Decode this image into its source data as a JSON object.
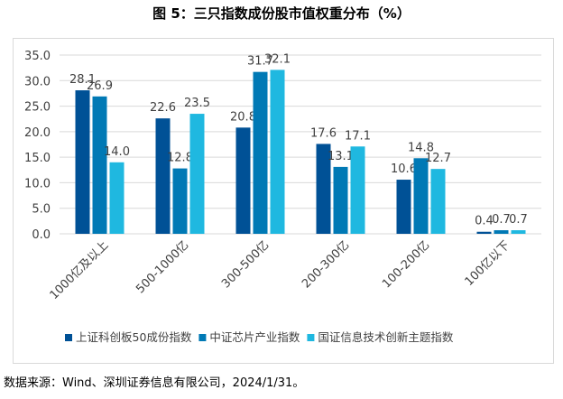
{
  "chart_data": {
    "type": "bar",
    "title": "图 5：三只指数成份股市值权重分布（%）",
    "categories": [
      "1000亿及以上",
      "500-1000亿",
      "300-500亿",
      "200-300亿",
      "100-200亿",
      "100亿以下"
    ],
    "series": [
      {
        "name": "上证科创板50成份指数",
        "color": "#005196",
        "values": [
          28.1,
          22.6,
          20.8,
          17.6,
          10.6,
          0.4
        ]
      },
      {
        "name": "中证芯片产业指数",
        "color": "#0079b5",
        "values": [
          26.9,
          12.8,
          31.7,
          13.1,
          14.8,
          0.7
        ]
      },
      {
        "name": "国证信息技术创新主题指数",
        "color": "#1fb8e0",
        "values": [
          14.0,
          23.5,
          32.1,
          17.1,
          12.7,
          0.7
        ]
      }
    ],
    "ylim": [
      0,
      35
    ],
    "yticks": [
      "0.0",
      "5.0",
      "10.0",
      "15.0",
      "20.0",
      "25.0",
      "30.0",
      "35.0"
    ],
    "grid": true,
    "legend": "bottom",
    "xlabel": "",
    "ylabel": ""
  },
  "source": "数据来源：Wind、深圳证券信息有限公司，2024/1/31。"
}
